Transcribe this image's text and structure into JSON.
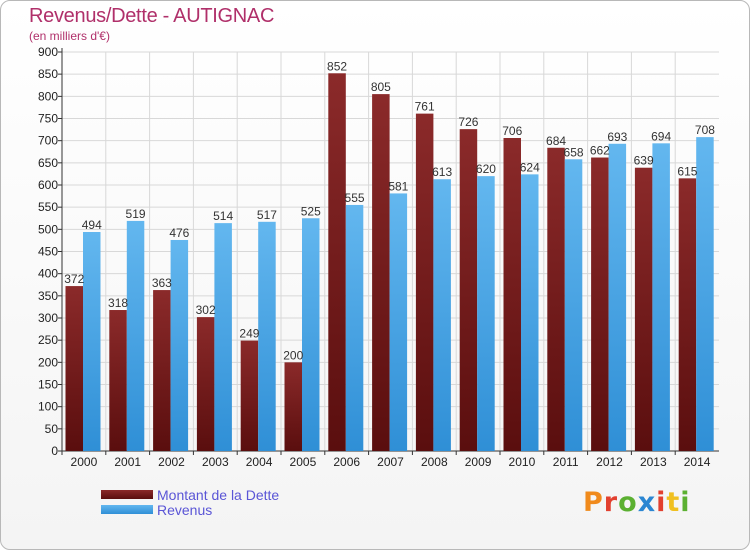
{
  "title": "Revenus/Dette - AUTIGNAC",
  "subtitle": "(en milliers d'€)",
  "logo_text": "Proxiti",
  "legend": {
    "debt_label": "Montant de la Dette",
    "revenue_label": "Revenus"
  },
  "colors": {
    "title": "#b0306a",
    "debt_top": "#8b2a2a",
    "debt_bottom": "#5a0e0e",
    "revenue_top": "#63b7ef",
    "revenue_bottom": "#2f8fd6",
    "grid": "#d8d8d8"
  },
  "chart_data": {
    "type": "bar",
    "title": "Revenus/Dette - AUTIGNAC",
    "subtitle": "(en milliers d'€)",
    "categories": [
      "2000",
      "2001",
      "2002",
      "2003",
      "2004",
      "2005",
      "2006",
      "2007",
      "2008",
      "2009",
      "2010",
      "2011",
      "2012",
      "2013",
      "2014"
    ],
    "series": [
      {
        "name": "Montant de la Dette",
        "values": [
          372,
          318,
          363,
          302,
          249,
          200,
          852,
          805,
          761,
          726,
          706,
          684,
          662,
          639,
          615
        ]
      },
      {
        "name": "Revenus",
        "values": [
          494,
          519,
          476,
          514,
          517,
          525,
          555,
          581,
          613,
          620,
          624,
          658,
          693,
          694,
          708
        ]
      }
    ],
    "ylim": [
      0,
      900
    ],
    "ytick_step": 50,
    "grid": true,
    "legend_position": "bottom-left"
  }
}
